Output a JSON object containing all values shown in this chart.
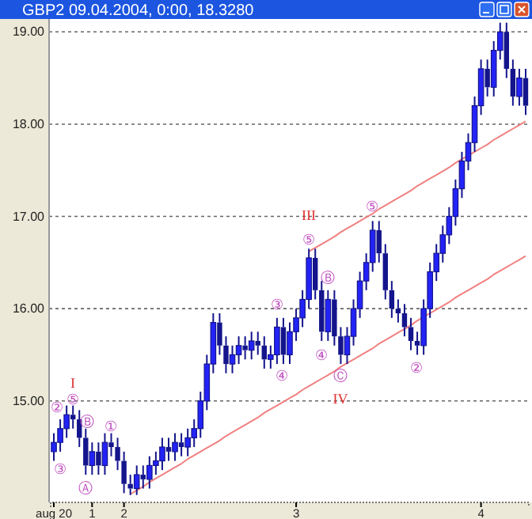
{
  "chart_data": {
    "type": "candlestick",
    "title": "GBP2  09.04.2004, 0:00, 18.3280",
    "categories": [
      "aug 20",
      null,
      null,
      null,
      null,
      null,
      "1",
      null,
      null,
      null,
      null,
      "2",
      null,
      null,
      null,
      null,
      null,
      null,
      null,
      null,
      null,
      null,
      null,
      null,
      null,
      null,
      null,
      null,
      null,
      null,
      null,
      null,
      null,
      null,
      null,
      null,
      null,
      null,
      "3",
      null,
      null,
      null,
      null,
      null,
      null,
      null,
      null,
      null,
      null,
      null,
      null,
      null,
      null,
      null,
      null,
      null,
      null,
      null,
      null,
      null,
      null,
      null,
      null,
      null,
      null,
      null,
      null,
      "4",
      null,
      null,
      null,
      null,
      null,
      null,
      null
    ],
    "ohlc": [
      [
        14.45,
        14.65,
        14.35,
        14.55
      ],
      [
        14.55,
        14.8,
        14.45,
        14.7
      ],
      [
        14.7,
        14.95,
        14.6,
        14.85
      ],
      [
        14.85,
        14.95,
        14.7,
        14.8
      ],
      [
        14.8,
        14.9,
        14.5,
        14.6
      ],
      [
        14.6,
        14.7,
        14.2,
        14.3
      ],
      [
        14.3,
        14.55,
        14.2,
        14.45
      ],
      [
        14.45,
        14.55,
        14.2,
        14.3
      ],
      [
        14.3,
        14.65,
        14.2,
        14.55
      ],
      [
        14.55,
        14.65,
        14.4,
        14.5
      ],
      [
        14.5,
        14.6,
        14.25,
        14.35
      ],
      [
        14.35,
        14.45,
        14.0,
        14.1
      ],
      [
        14.1,
        14.2,
        13.98,
        14.05
      ],
      [
        14.05,
        14.3,
        13.98,
        14.2
      ],
      [
        14.2,
        14.3,
        14.05,
        14.15
      ],
      [
        14.15,
        14.4,
        14.05,
        14.3
      ],
      [
        14.3,
        14.45,
        14.2,
        14.35
      ],
      [
        14.35,
        14.6,
        14.25,
        14.5
      ],
      [
        14.5,
        14.6,
        14.35,
        14.45
      ],
      [
        14.45,
        14.65,
        14.35,
        14.55
      ],
      [
        14.55,
        14.65,
        14.4,
        14.5
      ],
      [
        14.5,
        14.7,
        14.4,
        14.6
      ],
      [
        14.6,
        14.8,
        14.5,
        14.7
      ],
      [
        14.7,
        15.1,
        14.6,
        15.0
      ],
      [
        15.0,
        15.5,
        14.9,
        15.4
      ],
      [
        15.4,
        15.95,
        15.3,
        15.85
      ],
      [
        15.85,
        15.95,
        15.5,
        15.6
      ],
      [
        15.6,
        15.7,
        15.3,
        15.4
      ],
      [
        15.4,
        15.6,
        15.3,
        15.5
      ],
      [
        15.5,
        15.7,
        15.4,
        15.6
      ],
      [
        15.6,
        15.7,
        15.45,
        15.55
      ],
      [
        15.55,
        15.75,
        15.45,
        15.65
      ],
      [
        15.65,
        15.75,
        15.5,
        15.6
      ],
      [
        15.6,
        15.7,
        15.35,
        15.45
      ],
      [
        15.45,
        15.6,
        15.35,
        15.5
      ],
      [
        15.5,
        15.9,
        15.4,
        15.8
      ],
      [
        15.8,
        15.9,
        15.4,
        15.5
      ],
      [
        15.5,
        15.85,
        15.4,
        15.75
      ],
      [
        15.75,
        16.0,
        15.65,
        15.9
      ],
      [
        15.9,
        16.2,
        15.8,
        16.1
      ],
      [
        16.1,
        16.65,
        16.0,
        16.55
      ],
      [
        16.55,
        16.65,
        16.1,
        16.2
      ],
      [
        16.2,
        16.3,
        15.65,
        15.75
      ],
      [
        15.75,
        16.2,
        15.65,
        16.1
      ],
      [
        16.1,
        16.2,
        15.6,
        15.7
      ],
      [
        15.7,
        15.8,
        15.4,
        15.5
      ],
      [
        15.5,
        15.8,
        15.4,
        15.7
      ],
      [
        15.7,
        16.1,
        15.6,
        16.0
      ],
      [
        16.0,
        16.4,
        15.9,
        16.3
      ],
      [
        16.3,
        16.6,
        16.2,
        16.5
      ],
      [
        16.5,
        16.95,
        16.4,
        16.85
      ],
      [
        16.85,
        16.95,
        16.5,
        16.6
      ],
      [
        16.6,
        16.7,
        16.1,
        16.2
      ],
      [
        16.2,
        16.3,
        15.9,
        16.0
      ],
      [
        16.0,
        16.1,
        15.85,
        15.95
      ],
      [
        15.95,
        16.05,
        15.7,
        15.8
      ],
      [
        15.8,
        15.9,
        15.55,
        15.65
      ],
      [
        15.65,
        15.75,
        15.5,
        15.6
      ],
      [
        15.6,
        16.1,
        15.5,
        16.0
      ],
      [
        16.0,
        16.5,
        15.9,
        16.4
      ],
      [
        16.4,
        16.7,
        16.3,
        16.6
      ],
      [
        16.6,
        16.9,
        16.5,
        16.8
      ],
      [
        16.8,
        17.1,
        16.7,
        17.0
      ],
      [
        17.0,
        17.4,
        16.9,
        17.3
      ],
      [
        17.3,
        17.7,
        17.2,
        17.6
      ],
      [
        17.6,
        17.9,
        17.5,
        17.8
      ],
      [
        17.8,
        18.3,
        17.7,
        18.2
      ],
      [
        18.2,
        18.7,
        18.1,
        18.6
      ],
      [
        18.6,
        18.7,
        18.3,
        18.4
      ],
      [
        18.4,
        18.9,
        18.3,
        18.8
      ],
      [
        18.8,
        19.1,
        18.7,
        19.0
      ],
      [
        19.0,
        19.1,
        18.5,
        18.6
      ],
      [
        18.6,
        18.7,
        18.2,
        18.3
      ],
      [
        18.3,
        18.6,
        18.2,
        18.5
      ],
      [
        18.5,
        18.6,
        18.1,
        18.2
      ]
    ],
    "color": "#14148c",
    "series": [
      {
        "type": "line",
        "color": "#f08080",
        "values": [
          null,
          null,
          null,
          null,
          null,
          null,
          null,
          null,
          null,
          null,
          null,
          null,
          13.99,
          14.03,
          14.07,
          14.12,
          14.16,
          14.2,
          14.24,
          14.28,
          14.32,
          14.37,
          14.41,
          14.45,
          14.49,
          14.53,
          14.57,
          14.62,
          14.66,
          14.7,
          14.74,
          14.78,
          14.82,
          14.87,
          14.91,
          14.95,
          14.99,
          15.03,
          15.07,
          15.12,
          15.16,
          15.2,
          15.24,
          15.28,
          15.32,
          15.37,
          15.41,
          15.45,
          15.49,
          15.53,
          15.57,
          15.62,
          15.66,
          15.7,
          15.74,
          15.78,
          15.82,
          15.87,
          15.91,
          15.95,
          15.99,
          16.03,
          16.07,
          16.12,
          16.16,
          16.2,
          16.24,
          16.28,
          16.32,
          16.37,
          16.41,
          16.45,
          16.49,
          16.53,
          16.57
        ]
      },
      {
        "type": "line",
        "color": "#f08080",
        "values": [
          null,
          null,
          null,
          null,
          null,
          null,
          null,
          null,
          null,
          null,
          null,
          null,
          null,
          null,
          null,
          null,
          null,
          null,
          null,
          null,
          null,
          null,
          null,
          null,
          null,
          null,
          null,
          null,
          null,
          null,
          null,
          null,
          null,
          null,
          null,
          null,
          null,
          null,
          null,
          null,
          16.62,
          16.66,
          16.7,
          16.74,
          16.78,
          16.83,
          16.87,
          16.91,
          16.95,
          16.99,
          17.03,
          17.08,
          17.12,
          17.16,
          17.2,
          17.24,
          17.28,
          17.33,
          17.37,
          17.41,
          17.45,
          17.49,
          17.53,
          17.58,
          17.62,
          17.66,
          17.7,
          17.74,
          17.78,
          17.83,
          17.87,
          17.91,
          17.95,
          17.99,
          18.03
        ]
      }
    ],
    "ylim": [
      13.9,
      19.14
    ],
    "yticks": [
      {
        "value": 15,
        "label": "15.00"
      },
      {
        "value": 16,
        "label": "16.00"
      },
      {
        "value": 17,
        "label": "17.00"
      },
      {
        "value": 18,
        "label": "18.00"
      },
      {
        "value": 19,
        "label": "19.00"
      }
    ],
    "grid": "y",
    "annotations": [
      "I",
      "②",
      "③",
      "⑤",
      "Ⓑ",
      "Ⓐ",
      "①",
      "③",
      "④",
      "III",
      "⑤",
      "④",
      {
        "text": "Ⓑ",
        "y": 16.33
      },
      "Ⓒ",
      "IV",
      "⑤",
      "②"
    ]
  }
}
